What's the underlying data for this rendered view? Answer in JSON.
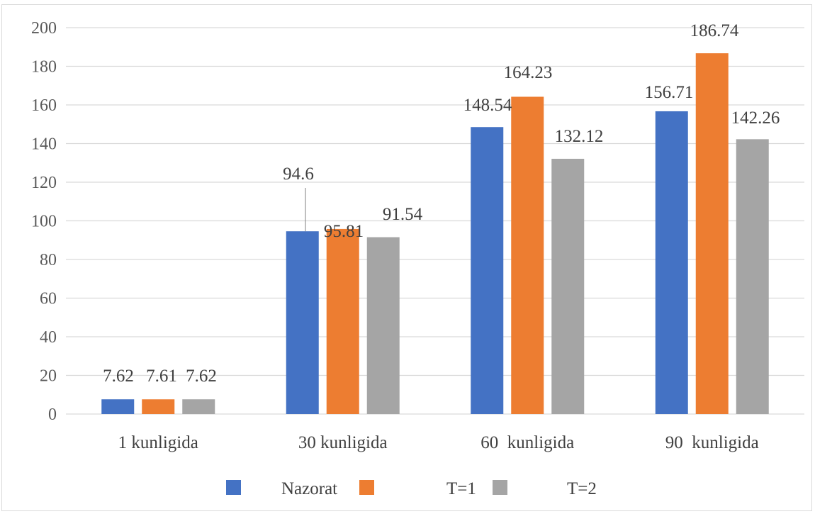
{
  "chart_data": {
    "type": "bar",
    "categories": [
      "1 kunligida",
      "30 kunligida",
      "60  kunligida",
      "90  kunligida"
    ],
    "series": [
      {
        "name": "Nazorat",
        "color": "#4472c4",
        "values": [
          7.62,
          94.6,
          148.54,
          156.71
        ]
      },
      {
        "name": "T=1",
        "color": "#ed7d31",
        "values": [
          7.61,
          95.81,
          164.23,
          186.74
        ]
      },
      {
        "name": "T=2",
        "color": "#a5a5a5",
        "values": [
          7.62,
          91.54,
          132.12,
          142.26
        ]
      }
    ],
    "data_label_text": [
      [
        "7.62",
        "94.6",
        "148.54",
        "156.71"
      ],
      [
        "7.61",
        "95.81",
        "164.23",
        "186.74"
      ],
      [
        "7.62",
        "91.54",
        "132.12",
        "142.26"
      ]
    ],
    "yticks": [
      "0",
      "20",
      "40",
      "60",
      "80",
      "100",
      "120",
      "140",
      "160",
      "180",
      "200"
    ],
    "ylim": [
      0,
      200
    ],
    "grid": true,
    "legend_position": "bottom",
    "gridline_color": "#d9d9d9"
  }
}
